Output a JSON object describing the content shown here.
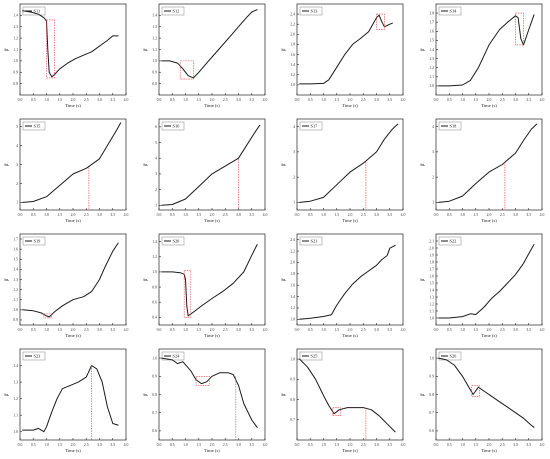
{
  "colors": {
    "line": "#1a1a1a",
    "highlight": "#e23b3b",
    "axis": "#222222",
    "background": "#ffffff"
  },
  "ylabel": "β'",
  "xlabel": "Time (s)",
  "xticks": [
    "0.0",
    "0.5",
    "1.0",
    "1.5",
    "2.0",
    "2.5",
    "3.0",
    "3.5",
    "4.0"
  ],
  "chart_data": [
    {
      "type": "line",
      "legend": "S11",
      "xlabel": "Time (s)",
      "ylabel": "β'",
      "xlim": [
        0,
        4
      ],
      "ylim": [
        0.7,
        1.5
      ],
      "yticks": [
        "0.8",
        "0.9",
        "1.0",
        "1.1",
        "1.2",
        "1.3",
        "1.4"
      ],
      "x": [
        0.1,
        0.4,
        0.7,
        0.9,
        1.0,
        1.05,
        1.1,
        1.2,
        1.3,
        1.5,
        1.8,
        2.1,
        2.4,
        2.7,
        3.0,
        3.3,
        3.5,
        3.7
      ],
      "y": [
        1.44,
        1.43,
        1.41,
        1.38,
        1.35,
        1.1,
        0.9,
        0.86,
        0.88,
        0.93,
        0.98,
        1.02,
        1.05,
        1.08,
        1.13,
        1.18,
        1.22,
        1.22
      ],
      "highlights": [
        {
          "type": "box",
          "x0": 1.0,
          "x1": 1.3,
          "y0": 0.85,
          "y1": 1.36
        }
      ]
    },
    {
      "type": "line",
      "legend": "S12",
      "xlabel": "Time (s)",
      "ylabel": "β'",
      "xlim": [
        0,
        4
      ],
      "ylim": [
        0.7,
        1.5
      ],
      "yticks": [
        "0.8",
        "0.9",
        "1.0",
        "1.1",
        "1.2",
        "1.3",
        "1.4"
      ],
      "x": [
        0.1,
        0.4,
        0.7,
        0.9,
        1.1,
        1.3,
        1.5,
        1.8,
        2.1,
        2.4,
        2.7,
        3.0,
        3.3,
        3.5,
        3.7
      ],
      "y": [
        1.0,
        1.0,
        0.98,
        0.93,
        0.87,
        0.85,
        0.9,
        0.98,
        1.06,
        1.14,
        1.22,
        1.3,
        1.38,
        1.43,
        1.45
      ],
      "highlights": [
        {
          "type": "box",
          "x0": 0.8,
          "x1": 1.3,
          "y0": 0.84,
          "y1": 1.0
        }
      ]
    },
    {
      "type": "line",
      "legend": "S13",
      "xlabel": "Time (s)",
      "ylabel": "β'",
      "xlim": [
        0,
        4
      ],
      "ylim": [
        0.8,
        2.6
      ],
      "yticks": [
        "1.0",
        "1.2",
        "1.4",
        "1.6",
        "1.8",
        "2.0",
        "2.2",
        "2.4"
      ],
      "x": [
        0.1,
        0.5,
        1.0,
        1.2,
        1.5,
        1.8,
        2.1,
        2.4,
        2.7,
        3.0,
        3.1,
        3.2,
        3.3,
        3.5,
        3.6
      ],
      "y": [
        1.02,
        1.02,
        1.03,
        1.1,
        1.35,
        1.6,
        1.8,
        1.92,
        2.05,
        2.33,
        2.38,
        2.25,
        2.15,
        2.2,
        2.22
      ],
      "highlights": [
        {
          "type": "box",
          "x0": 3.0,
          "x1": 3.3,
          "y0": 2.1,
          "y1": 2.4
        }
      ]
    },
    {
      "type": "line",
      "legend": "S14",
      "xlabel": "Time (s)",
      "ylabel": "β'",
      "xlim": [
        0,
        4
      ],
      "ylim": [
        0.9,
        1.9
      ],
      "yticks": [
        "1.0",
        "1.1",
        "1.2",
        "1.3",
        "1.4",
        "1.5",
        "1.6",
        "1.7",
        "1.8"
      ],
      "x": [
        0.1,
        0.5,
        1.0,
        1.3,
        1.6,
        2.0,
        2.4,
        2.7,
        3.0,
        3.1,
        3.2,
        3.3,
        3.5,
        3.7
      ],
      "y": [
        1.0,
        1.0,
        1.01,
        1.06,
        1.2,
        1.45,
        1.62,
        1.7,
        1.77,
        1.75,
        1.52,
        1.45,
        1.62,
        1.78
      ],
      "highlights": [
        {
          "type": "box",
          "x0": 3.0,
          "x1": 3.3,
          "y0": 1.45,
          "y1": 1.8
        }
      ]
    },
    {
      "type": "line",
      "legend": "S15",
      "xlabel": "Time (s)",
      "ylabel": "β'",
      "xlim": [
        0,
        4
      ],
      "ylim": [
        0.6,
        5.4
      ],
      "yticks": [
        "1",
        "2",
        "3",
        "4",
        "5"
      ],
      "x": [
        0.1,
        0.5,
        1.0,
        1.5,
        2.0,
        2.5,
        3.0,
        3.3,
        3.6,
        3.8
      ],
      "y": [
        1.0,
        1.05,
        1.3,
        1.9,
        2.5,
        2.8,
        3.3,
        4.0,
        4.7,
        5.2
      ],
      "highlights": [
        {
          "type": "vline",
          "x": 2.6,
          "y": 2.85
        }
      ]
    },
    {
      "type": "line",
      "legend": "S16",
      "xlabel": "Time (s)",
      "ylabel": "β'",
      "xlim": [
        0,
        4
      ],
      "ylim": [
        0.7,
        6.5
      ],
      "yticks": [
        "1",
        "2",
        "3",
        "4",
        "5",
        "6"
      ],
      "x": [
        0.1,
        0.5,
        1.0,
        1.5,
        2.0,
        2.5,
        3.0,
        3.3,
        3.6,
        3.8
      ],
      "y": [
        1.0,
        1.05,
        1.4,
        2.2,
        3.0,
        3.5,
        4.0,
        4.8,
        5.6,
        6.1
      ],
      "highlights": [
        {
          "type": "vline",
          "x": 3.0,
          "y": 3.95
        }
      ]
    },
    {
      "type": "line",
      "legend": "S17",
      "xlabel": "Time (s)",
      "ylabel": "β'",
      "xlim": [
        0,
        4
      ],
      "ylim": [
        0.7,
        4.3
      ],
      "yticks": [
        "1",
        "2",
        "3",
        "4"
      ],
      "x": [
        0.1,
        0.5,
        1.0,
        1.5,
        2.0,
        2.5,
        3.0,
        3.3,
        3.6,
        3.8
      ],
      "y": [
        1.0,
        1.05,
        1.2,
        1.7,
        2.2,
        2.55,
        3.0,
        3.5,
        3.9,
        4.1
      ],
      "highlights": [
        {
          "type": "vline",
          "x": 2.6,
          "y": 2.6
        }
      ]
    },
    {
      "type": "line",
      "legend": "S18",
      "xlabel": "Time (s)",
      "ylabel": "β'",
      "xlim": [
        0,
        4
      ],
      "ylim": [
        0.7,
        4.3
      ],
      "yticks": [
        "1",
        "2",
        "3",
        "4"
      ],
      "x": [
        0.1,
        0.5,
        1.0,
        1.5,
        2.0,
        2.5,
        3.0,
        3.3,
        3.6,
        3.8
      ],
      "y": [
        1.0,
        1.05,
        1.25,
        1.75,
        2.2,
        2.5,
        2.95,
        3.45,
        3.9,
        4.1
      ],
      "highlights": [
        {
          "type": "vline",
          "x": 2.6,
          "y": 2.6
        }
      ]
    },
    {
      "type": "line",
      "legend": "S19",
      "xlabel": "Time (s)",
      "ylabel": "β'",
      "xlim": [
        0,
        4
      ],
      "ylim": [
        0.85,
        1.75
      ],
      "yticks": [
        "0.9",
        "1.0",
        "1.1",
        "1.2",
        "1.3",
        "1.4",
        "1.5",
        "1.6",
        "1.7"
      ],
      "x": [
        0.1,
        0.5,
        0.8,
        1.0,
        1.1,
        1.3,
        1.6,
        2.0,
        2.4,
        2.7,
        3.0,
        3.2,
        3.5,
        3.7
      ],
      "y": [
        1.0,
        0.99,
        0.97,
        0.94,
        0.93,
        0.98,
        1.04,
        1.1,
        1.13,
        1.18,
        1.3,
        1.42,
        1.58,
        1.66
      ],
      "highlights": [
        {
          "type": "box",
          "x0": 0.9,
          "x1": 1.2,
          "y0": 0.92,
          "y1": 0.96
        }
      ]
    },
    {
      "type": "line",
      "legend": "S20",
      "xlabel": "Time (s)",
      "ylabel": "β'",
      "xlim": [
        0,
        4
      ],
      "ylim": [
        0.3,
        1.5
      ],
      "yticks": [
        "0.4",
        "0.6",
        "0.8",
        "1.0",
        "1.2",
        "1.4"
      ],
      "x": [
        0.1,
        0.5,
        0.8,
        0.95,
        1.0,
        1.05,
        1.1,
        1.3,
        1.6,
        2.0,
        2.4,
        2.8,
        3.2,
        3.5,
        3.7
      ],
      "y": [
        1.0,
        1.0,
        0.99,
        0.97,
        0.9,
        0.55,
        0.42,
        0.47,
        0.55,
        0.65,
        0.74,
        0.85,
        1.0,
        1.22,
        1.36
      ],
      "highlights": [
        {
          "type": "box",
          "x0": 0.95,
          "x1": 1.2,
          "y0": 0.4,
          "y1": 1.02
        }
      ]
    },
    {
      "type": "line",
      "legend": "S21",
      "xlabel": "Time (s)",
      "ylabel": "β'",
      "xlim": [
        0,
        4
      ],
      "ylim": [
        0.9,
        2.5
      ],
      "yticks": [
        "1.0",
        "1.2",
        "1.4",
        "1.6",
        "1.8",
        "2.0",
        "2.2",
        "2.4"
      ],
      "x": [
        0.1,
        0.5,
        1.0,
        1.3,
        1.5,
        1.8,
        2.1,
        2.4,
        2.7,
        3.0,
        3.2,
        3.4,
        3.5,
        3.7
      ],
      "y": [
        1.0,
        1.02,
        1.05,
        1.08,
        1.25,
        1.45,
        1.62,
        1.75,
        1.85,
        1.95,
        2.05,
        2.12,
        2.25,
        2.3
      ],
      "highlights": []
    },
    {
      "type": "line",
      "legend": "S22",
      "xlabel": "Time (s)",
      "ylabel": "β'",
      "xlim": [
        0,
        4
      ],
      "ylim": [
        0.9,
        2.2
      ],
      "yticks": [
        "1.0",
        "1.1",
        "1.2",
        "1.3",
        "1.4",
        "1.5",
        "1.6",
        "1.7",
        "1.8",
        "1.9",
        "2.0",
        "2.1"
      ],
      "x": [
        0.1,
        0.5,
        1.0,
        1.3,
        1.5,
        1.8,
        2.1,
        2.4,
        2.7,
        3.0,
        3.3,
        3.5,
        3.7
      ],
      "y": [
        1.0,
        1.0,
        1.02,
        1.06,
        1.05,
        1.15,
        1.28,
        1.38,
        1.5,
        1.62,
        1.78,
        1.92,
        2.05
      ],
      "highlights": []
    },
    {
      "type": "line",
      "legend": "S23",
      "xlabel": "Time (s)",
      "ylabel": "β'",
      "xlim": [
        0,
        4
      ],
      "ylim": [
        0.95,
        1.5
      ],
      "yticks": [
        "1.0",
        "1.1",
        "1.2",
        "1.3",
        "1.4"
      ],
      "x": [
        0.1,
        0.5,
        0.7,
        0.9,
        1.0,
        1.2,
        1.4,
        1.6,
        1.9,
        2.2,
        2.5,
        2.7,
        2.9,
        3.1,
        3.3,
        3.5,
        3.7
      ],
      "y": [
        1.01,
        1.01,
        1.02,
        1.0,
        1.03,
        1.12,
        1.2,
        1.26,
        1.28,
        1.3,
        1.33,
        1.4,
        1.38,
        1.3,
        1.15,
        1.05,
        1.04
      ],
      "highlights": [
        {
          "type": "vline",
          "x": 2.7,
          "y": 1.4
        }
      ]
    },
    {
      "type": "line",
      "legend": "S24",
      "xlabel": "Time (s)",
      "ylabel": "β'",
      "xlim": [
        0,
        4
      ],
      "ylim": [
        0.55,
        1.05
      ],
      "yticks": [
        "0.6",
        "0.7",
        "0.8",
        "0.9",
        "1.0"
      ],
      "x": [
        0.1,
        0.5,
        0.7,
        0.9,
        1.2,
        1.4,
        1.6,
        1.8,
        2.0,
        2.3,
        2.6,
        2.8,
        3.0,
        3.2,
        3.5,
        3.7
      ],
      "y": [
        1.0,
        0.99,
        0.97,
        0.98,
        0.93,
        0.88,
        0.86,
        0.87,
        0.9,
        0.92,
        0.92,
        0.91,
        0.85,
        0.75,
        0.66,
        0.62
      ],
      "highlights": [
        {
          "type": "box",
          "x0": 1.4,
          "x1": 1.9,
          "y0": 0.85,
          "y1": 0.9
        },
        {
          "type": "vline",
          "x": 2.9,
          "y": 0.9
        }
      ]
    },
    {
      "type": "line",
      "legend": "S25",
      "xlabel": "Time (s)",
      "ylabel": "β'",
      "xlim": [
        0,
        4
      ],
      "ylim": [
        0.6,
        1.05
      ],
      "yticks": [
        "0.7",
        "0.8",
        "0.9",
        "1.0"
      ],
      "x": [
        0.1,
        0.4,
        0.7,
        1.0,
        1.2,
        1.4,
        1.6,
        1.9,
        2.2,
        2.5,
        2.8,
        3.1,
        3.4,
        3.7
      ],
      "y": [
        1.0,
        0.96,
        0.9,
        0.82,
        0.77,
        0.73,
        0.75,
        0.76,
        0.76,
        0.76,
        0.75,
        0.72,
        0.68,
        0.64
      ],
      "highlights": [
        {
          "type": "box",
          "x0": 1.35,
          "x1": 1.65,
          "y0": 0.72,
          "y1": 0.76
        },
        {
          "type": "vline",
          "x": 2.6,
          "y": 0.76
        }
      ]
    },
    {
      "type": "line",
      "legend": "S26",
      "xlabel": "Time (s)",
      "ylabel": "β'",
      "xlim": [
        0,
        4
      ],
      "ylim": [
        0.55,
        1.05
      ],
      "yticks": [
        "0.6",
        "0.7",
        "0.8",
        "0.9",
        "1.0"
      ],
      "x": [
        0.1,
        0.4,
        0.7,
        1.0,
        1.2,
        1.4,
        1.6,
        1.8,
        2.1,
        2.4,
        2.7,
        3.0,
        3.3,
        3.6,
        3.7
      ],
      "y": [
        1.0,
        0.99,
        0.96,
        0.9,
        0.85,
        0.8,
        0.84,
        0.82,
        0.79,
        0.76,
        0.73,
        0.7,
        0.67,
        0.63,
        0.62
      ],
      "highlights": [
        {
          "type": "box",
          "x0": 1.35,
          "x1": 1.65,
          "y0": 0.79,
          "y1": 0.85
        }
      ]
    }
  ]
}
